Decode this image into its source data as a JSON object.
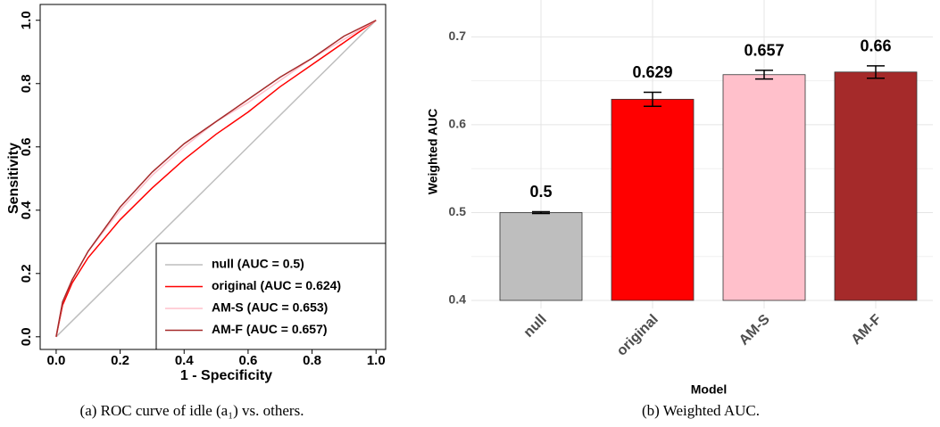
{
  "chart_data": [
    {
      "type": "line",
      "xlabel": "1 - Specificity",
      "ylabel": "Sensitivity",
      "caption": "(a)  ROC curve of idle (a₁) vs. others.",
      "x": [
        0,
        0.02,
        0.05,
        0.1,
        0.2,
        0.3,
        0.4,
        0.5,
        0.6,
        0.7,
        0.8,
        0.9,
        1
      ],
      "series": [
        {
          "name": "null (AUC = 0.5)",
          "color": "#bebebe",
          "values": [
            0,
            0.02,
            0.05,
            0.1,
            0.2,
            0.3,
            0.4,
            0.5,
            0.6,
            0.7,
            0.8,
            0.9,
            1
          ]
        },
        {
          "name": "original (AUC = 0.624)",
          "color": "#ff0000",
          "values": [
            0,
            0.1,
            0.17,
            0.25,
            0.37,
            0.47,
            0.56,
            0.64,
            0.71,
            0.79,
            0.86,
            0.93,
            1
          ]
        },
        {
          "name": "AM-S (AUC = 0.653)",
          "color": "#ffc0cb",
          "values": [
            0,
            0.11,
            0.18,
            0.27,
            0.4,
            0.51,
            0.6,
            0.68,
            0.74,
            0.81,
            0.88,
            0.94,
            1
          ]
        },
        {
          "name": "AM-F (AUC = 0.657)",
          "color": "#a52a2a",
          "values": [
            0,
            0.11,
            0.18,
            0.27,
            0.41,
            0.52,
            0.61,
            0.68,
            0.75,
            0.82,
            0.88,
            0.95,
            1
          ]
        }
      ],
      "xlim": [
        -0.05,
        1.03
      ],
      "ylim": [
        -0.04,
        1.05
      ],
      "xticks": [
        {
          "value": 0,
          "label": "0.0"
        },
        0.2,
        0.4,
        0.6,
        0.8,
        {
          "value": 1,
          "label": "1.0"
        }
      ],
      "yticks": [
        {
          "value": 0,
          "label": "0.0"
        },
        0.2,
        0.4,
        0.6,
        0.8,
        {
          "value": 1,
          "label": "1.0"
        }
      ],
      "legend": "bottom-right",
      "grid": false
    },
    {
      "type": "bar",
      "xlabel": "Model",
      "ylabel": "Weighted AUC",
      "caption": "(b) Weighted AUC.",
      "categories": [
        "null",
        "original",
        "AM-S",
        "AM-F"
      ],
      "values": [
        0.5,
        0.629,
        0.657,
        0.66
      ],
      "errors": [
        0.001,
        0.008,
        0.005,
        0.007
      ],
      "colors": [
        "#bebebe",
        "#ff0000",
        "#ffc0cb",
        "#a52a2a"
      ],
      "ylim": [
        0.4,
        0.742
      ],
      "yticks": [
        0.4,
        0.5,
        0.6,
        0.7
      ],
      "grid": true
    }
  ]
}
